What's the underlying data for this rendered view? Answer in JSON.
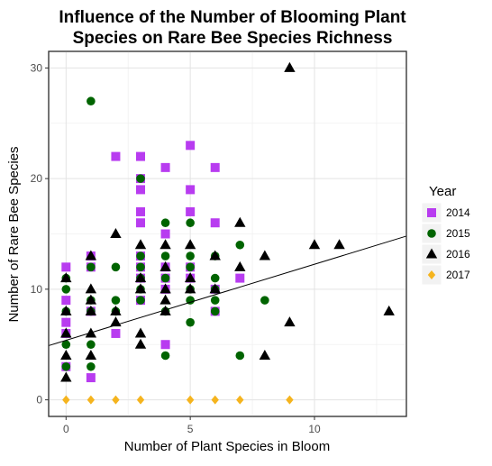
{
  "chart_data": {
    "type": "scatter",
    "title_lines": [
      "Influence of the Number of Blooming Plant",
      "Species on Rare Bee Species Richness"
    ],
    "xlabel": "Number of Plant Species in Bloom",
    "ylabel": "Number of Rare Bee Species",
    "xlim": [
      -0.7,
      13.7
    ],
    "ylim": [
      -1.5,
      31.5
    ],
    "x_ticks": [
      0,
      5,
      10
    ],
    "y_ticks": [
      0,
      10,
      20,
      30
    ],
    "legend_title": "Year",
    "legend_position": "right",
    "trendline": {
      "x": [
        -0.7,
        13.7
      ],
      "y": [
        4.9,
        14.8
      ]
    },
    "series": [
      {
        "name": "2014",
        "color": "#b83cf0",
        "shape": "square",
        "points": [
          [
            0,
            12
          ],
          [
            0,
            9
          ],
          [
            0,
            7
          ],
          [
            0,
            6
          ],
          [
            0,
            3
          ],
          [
            1,
            13
          ],
          [
            1,
            12
          ],
          [
            1,
            8
          ],
          [
            1,
            2
          ],
          [
            2,
            22
          ],
          [
            2,
            6
          ],
          [
            3,
            22
          ],
          [
            3,
            20
          ],
          [
            3,
            19
          ],
          [
            3,
            17
          ],
          [
            3,
            16
          ],
          [
            3,
            13
          ],
          [
            3,
            12
          ],
          [
            3,
            11
          ],
          [
            3,
            9
          ],
          [
            4,
            21
          ],
          [
            4,
            15
          ],
          [
            4,
            12
          ],
          [
            4,
            11
          ],
          [
            4,
            10
          ],
          [
            4,
            5
          ],
          [
            5,
            23
          ],
          [
            5,
            19
          ],
          [
            5,
            17
          ],
          [
            5,
            12
          ],
          [
            5,
            11
          ],
          [
            6,
            21
          ],
          [
            6,
            16
          ],
          [
            6,
            10
          ],
          [
            6,
            8
          ],
          [
            7,
            11
          ]
        ]
      },
      {
        "name": "2015",
        "color": "#006400",
        "shape": "circle",
        "points": [
          [
            0,
            11
          ],
          [
            0,
            10
          ],
          [
            0,
            8
          ],
          [
            0,
            5
          ],
          [
            0,
            3
          ],
          [
            1,
            27
          ],
          [
            1,
            12
          ],
          [
            1,
            9
          ],
          [
            1,
            8
          ],
          [
            1,
            5
          ],
          [
            1,
            3
          ],
          [
            2,
            12
          ],
          [
            2,
            9
          ],
          [
            2,
            8
          ],
          [
            3,
            20
          ],
          [
            3,
            13
          ],
          [
            3,
            12
          ],
          [
            3,
            11
          ],
          [
            3,
            10
          ],
          [
            3,
            9
          ],
          [
            4,
            16
          ],
          [
            4,
            13
          ],
          [
            4,
            11
          ],
          [
            4,
            8
          ],
          [
            4,
            4
          ],
          [
            5,
            16
          ],
          [
            5,
            13
          ],
          [
            5,
            12
          ],
          [
            5,
            10
          ],
          [
            5,
            9
          ],
          [
            5,
            7
          ],
          [
            6,
            13
          ],
          [
            6,
            11
          ],
          [
            6,
            10
          ],
          [
            6,
            9
          ],
          [
            6,
            8
          ],
          [
            7,
            14
          ],
          [
            7,
            4
          ],
          [
            8,
            9
          ]
        ]
      },
      {
        "name": "2016",
        "color": "#000000",
        "shape": "triangle",
        "points": [
          [
            0,
            11
          ],
          [
            0,
            8
          ],
          [
            0,
            6
          ],
          [
            0,
            4
          ],
          [
            0,
            2
          ],
          [
            1,
            13
          ],
          [
            1,
            10
          ],
          [
            1,
            9
          ],
          [
            1,
            8
          ],
          [
            1,
            6
          ],
          [
            1,
            4
          ],
          [
            2,
            15
          ],
          [
            2,
            8
          ],
          [
            2,
            7
          ],
          [
            3,
            14
          ],
          [
            3,
            11
          ],
          [
            3,
            10
          ],
          [
            3,
            6
          ],
          [
            3,
            5
          ],
          [
            4,
            14
          ],
          [
            4,
            12
          ],
          [
            4,
            10
          ],
          [
            4,
            9
          ],
          [
            4,
            8
          ],
          [
            5,
            14
          ],
          [
            5,
            11
          ],
          [
            5,
            10
          ],
          [
            6,
            13
          ],
          [
            6,
            10
          ],
          [
            7,
            16
          ],
          [
            7,
            12
          ],
          [
            8,
            13
          ],
          [
            8,
            4
          ],
          [
            9,
            30
          ],
          [
            9,
            7
          ],
          [
            10,
            14
          ],
          [
            11,
            14
          ],
          [
            13,
            8
          ]
        ]
      },
      {
        "name": "2017",
        "color": "#f5b41e",
        "shape": "diamond",
        "points": [
          [
            0,
            0
          ],
          [
            1,
            0
          ],
          [
            2,
            0
          ],
          [
            3,
            0
          ],
          [
            5,
            0
          ],
          [
            6,
            0
          ],
          [
            7,
            0
          ],
          [
            9,
            0
          ]
        ]
      }
    ]
  }
}
